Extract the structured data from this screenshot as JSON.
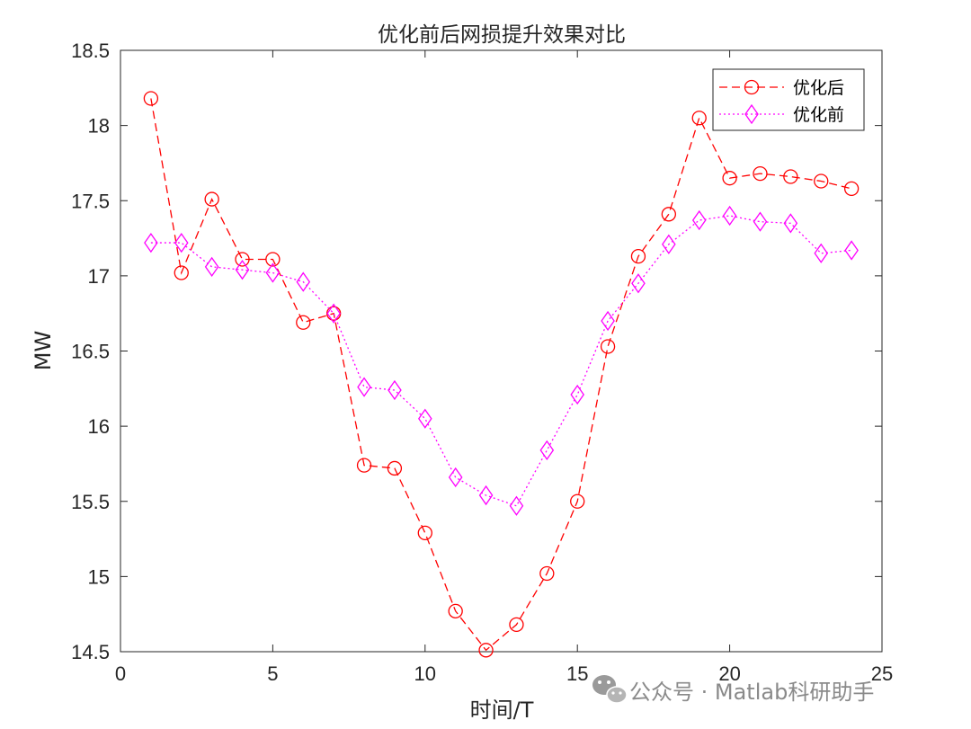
{
  "chart_data": {
    "type": "line",
    "title": "优化前后网损提升效果对比",
    "xlabel": "时间/T",
    "ylabel": "MW",
    "xlim": [
      0,
      25
    ],
    "ylim": [
      14.5,
      18.5
    ],
    "xticks": [
      0,
      5,
      10,
      15,
      20,
      25
    ],
    "yticks": [
      14.5,
      15,
      15.5,
      16,
      16.5,
      17,
      17.5,
      18,
      18.5
    ],
    "xtick_labels": [
      "0",
      "5",
      "10",
      "15",
      "20",
      "25"
    ],
    "ytick_labels": [
      "14.5",
      "15",
      "15.5",
      "16",
      "16.5",
      "17",
      "17.5",
      "18",
      "18.5"
    ],
    "grid": false,
    "legend_position": "top-right",
    "x": [
      1,
      2,
      3,
      4,
      5,
      6,
      7,
      8,
      9,
      10,
      11,
      12,
      13,
      14,
      15,
      16,
      17,
      18,
      19,
      20,
      21,
      22,
      23,
      24
    ],
    "series": [
      {
        "name": "优化后",
        "color": "#ff0000",
        "line_style": "dashed",
        "marker": "circle",
        "values": [
          18.18,
          17.02,
          17.51,
          17.11,
          17.11,
          16.69,
          16.75,
          15.74,
          15.72,
          15.29,
          14.77,
          14.51,
          14.68,
          15.02,
          15.5,
          16.53,
          17.13,
          17.41,
          18.05,
          17.65,
          17.68,
          17.66,
          17.63,
          17.58
        ]
      },
      {
        "name": "优化前",
        "color": "#ff00ff",
        "line_style": "dotted",
        "marker": "diamond",
        "values": [
          17.22,
          17.22,
          17.06,
          17.04,
          17.02,
          16.96,
          16.75,
          16.26,
          16.24,
          16.05,
          15.66,
          15.54,
          15.47,
          15.84,
          16.21,
          16.7,
          16.95,
          17.21,
          17.37,
          17.4,
          17.36,
          17.35,
          17.15,
          17.17
        ]
      }
    ]
  },
  "watermark": {
    "text": "公众号 · Matlab科研助手",
    "icon": "wechat-icon",
    "color": "#8a8a8a"
  }
}
